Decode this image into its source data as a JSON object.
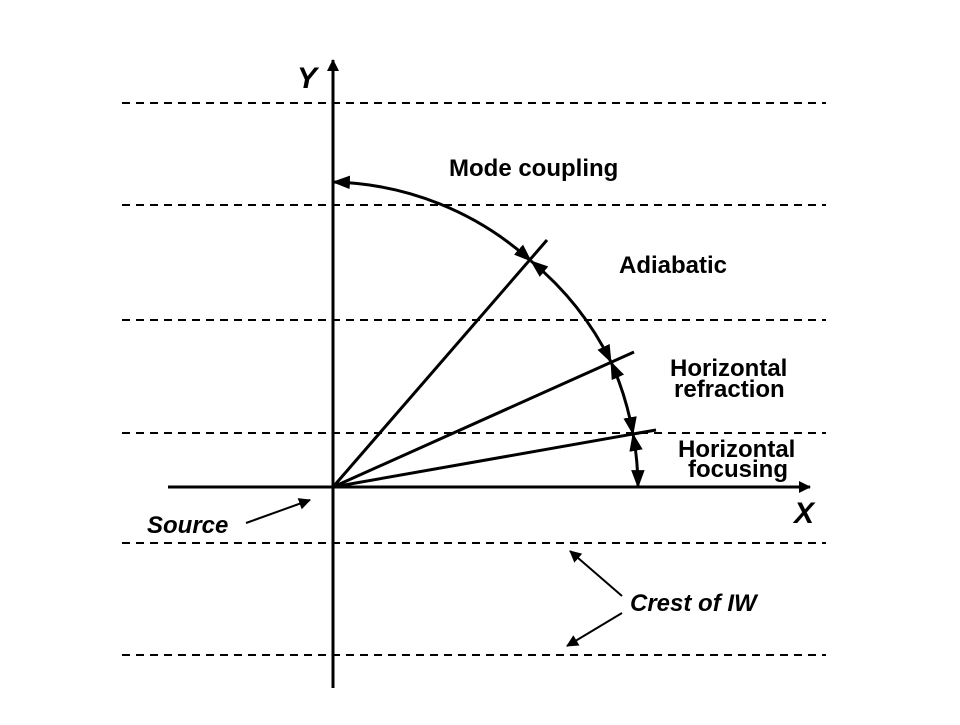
{
  "axes": {
    "x": "X",
    "y": "Y"
  },
  "regions": [
    {
      "lines": [
        "Mode coupling"
      ]
    },
    {
      "lines": [
        "Adiabatic"
      ]
    },
    {
      "lines": [
        "Horizontal",
        "refraction"
      ]
    },
    {
      "lines": [
        "Horizontal",
        "focusing"
      ]
    }
  ],
  "annotations": {
    "source": "Source",
    "crest": "Crest of IW"
  },
  "colors": {
    "ink": "#000000",
    "background": "#ffffff"
  }
}
